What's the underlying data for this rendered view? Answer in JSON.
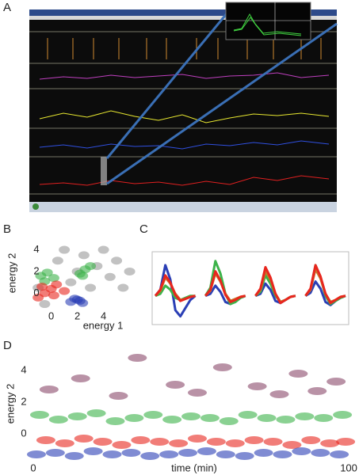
{
  "panel_labels": [
    "A",
    "B",
    "C",
    "D"
  ],
  "chart_data": [
    {
      "type": "scatter",
      "xlabel": "energy 1",
      "ylabel": "energy 2",
      "xlim": [
        -2.1,
        7.3
      ],
      "ylim": [
        -1.8,
        5.5
      ],
      "xticks": [
        0,
        2,
        4
      ],
      "yticks": [
        0,
        2,
        4
      ],
      "series": [
        {
          "color": "#9a9a9a",
          "x": [
            -1,
            0.5,
            1.5,
            2.5,
            3.5,
            4.5,
            5.5,
            1,
            3,
            4,
            -0.5,
            2,
            5,
            6
          ],
          "y": [
            0.5,
            3,
            1,
            3.5,
            2.5,
            1.5,
            0.5,
            4,
            0.5,
            4,
            -1,
            2,
            3,
            2
          ]
        },
        {
          "color": "#3cb34a",
          "x": [
            -0.8,
            -0.3,
            0.2,
            -0.5,
            2.2,
            2.6,
            3.0,
            2.4
          ],
          "y": [
            1.6,
            1.9,
            1.4,
            1.1,
            1.8,
            2.2,
            2.5,
            1.6
          ]
        },
        {
          "color": "#e8261e",
          "x": [
            -1,
            -0.5,
            0,
            0.4,
            -0.7,
            0.2,
            1
          ],
          "y": [
            -0.4,
            0,
            0.4,
            0.8,
            0.6,
            -0.2,
            0.2
          ]
        },
        {
          "color": "#2b3fb5",
          "x": [
            1.5,
            2,
            2.4,
            1.8,
            2.2
          ],
          "y": [
            -0.8,
            -0.6,
            -0.9,
            -0.5,
            -0.7
          ]
        }
      ]
    },
    {
      "type": "line",
      "ylim": [
        -2.5,
        4
      ],
      "series": [
        {
          "color": "#2b3fb5",
          "values": [
            0,
            0.6,
            3.0,
            1.6,
            -1.4,
            -2.0,
            -1.2,
            -0.4,
            0,
            null,
            0,
            0.2,
            1.0,
            0.4,
            -0.6,
            -0.8,
            -0.5,
            -0.2,
            0,
            null,
            0,
            0.2,
            1.2,
            0.6,
            -0.5,
            -0.7,
            -0.4,
            -0.1,
            0,
            null,
            0,
            0.3,
            1.4,
            0.7,
            -0.6,
            -0.9,
            -0.5,
            -0.2,
            0
          ]
        },
        {
          "color": "#3cb34a",
          "values": [
            0,
            0.2,
            1.0,
            0.6,
            -0.2,
            -0.4,
            -0.2,
            0,
            0,
            null,
            0,
            0.8,
            3.4,
            2.2,
            0.2,
            -0.8,
            -0.6,
            -0.2,
            0,
            null,
            0,
            0.4,
            2.0,
            1.2,
            0,
            -0.6,
            -0.4,
            -0.1,
            0,
            null,
            0,
            0.6,
            3.0,
            1.8,
            0,
            -0.8,
            -0.5,
            -0.2,
            0
          ]
        },
        {
          "color": "#c8782a",
          "values": [
            0,
            0.5,
            1.8,
            1.2,
            0.2,
            -0.4,
            -0.3,
            -0.1,
            0,
            null,
            0,
            0.5,
            2.2,
            1.4,
            0.2,
            -0.5,
            -0.3,
            -0.1,
            0,
            null,
            0,
            0.6,
            2.4,
            1.6,
            0.2,
            -0.6,
            -0.4,
            -0.1,
            0,
            null,
            0,
            0.6,
            2.6,
            1.7,
            0.2,
            -0.6,
            -0.4,
            -0.1,
            0
          ]
        },
        {
          "color": "#e8261e",
          "values": [
            0,
            0.6,
            2.0,
            1.3,
            0.1,
            -0.5,
            -0.3,
            -0.1,
            0,
            null,
            0,
            0.6,
            2.4,
            1.5,
            0.1,
            -0.6,
            -0.4,
            -0.1,
            0,
            null,
            0,
            0.7,
            2.8,
            1.8,
            0.2,
            -0.7,
            -0.4,
            -0.1,
            0,
            null,
            0,
            0.7,
            3.0,
            1.9,
            0.2,
            -0.7,
            -0.4,
            -0.1,
            0
          ]
        }
      ]
    },
    {
      "type": "scatter",
      "xlabel": "time (min)",
      "ylabel": "energy 2",
      "xlim": [
        -0.5,
        102.5
      ],
      "ylim": [
        -2.1,
        5.9
      ],
      "xticks": [
        0,
        100
      ],
      "yticks": [
        0,
        2,
        4
      ],
      "series": [
        {
          "color": "#8a4a6a",
          "x": [
            5,
            15,
            27,
            33,
            45,
            52,
            60,
            71,
            78,
            84,
            90,
            96
          ],
          "y": [
            2.8,
            3.5,
            2.4,
            4.8,
            3.1,
            2.6,
            4.2,
            3.0,
            2.5,
            3.8,
            2.7,
            3.3
          ]
        },
        {
          "color": "#3cb34a",
          "x": [
            2,
            8,
            14,
            20,
            26,
            32,
            38,
            44,
            50,
            56,
            62,
            68,
            74,
            80,
            86,
            92,
            98
          ],
          "y": [
            1.2,
            0.9,
            1.1,
            1.3,
            0.8,
            1.0,
            1.2,
            0.9,
            1.1,
            1.0,
            0.8,
            1.2,
            1.0,
            0.9,
            1.1,
            1.0,
            1.2
          ]
        },
        {
          "color": "#e8261e",
          "x": [
            4,
            10,
            16,
            22,
            28,
            34,
            40,
            46,
            52,
            58,
            64,
            70,
            76,
            82,
            88,
            94,
            99
          ],
          "y": [
            -0.4,
            -0.6,
            -0.3,
            -0.5,
            -0.7,
            -0.4,
            -0.5,
            -0.6,
            -0.3,
            -0.5,
            -0.6,
            -0.4,
            -0.5,
            -0.7,
            -0.4,
            -0.6,
            -0.5
          ]
        },
        {
          "color": "#2b3fb5",
          "x": [
            1,
            7,
            13,
            19,
            25,
            31,
            37,
            43,
            49,
            55,
            61,
            67,
            73,
            79,
            85,
            91,
            97
          ],
          "y": [
            -1.3,
            -1.2,
            -1.4,
            -1.1,
            -1.3,
            -1.2,
            -1.4,
            -1.3,
            -1.2,
            -1.1,
            -1.3,
            -1.4,
            -1.2,
            -1.3,
            -1.1,
            -1.2,
            -1.3
          ]
        }
      ]
    }
  ]
}
